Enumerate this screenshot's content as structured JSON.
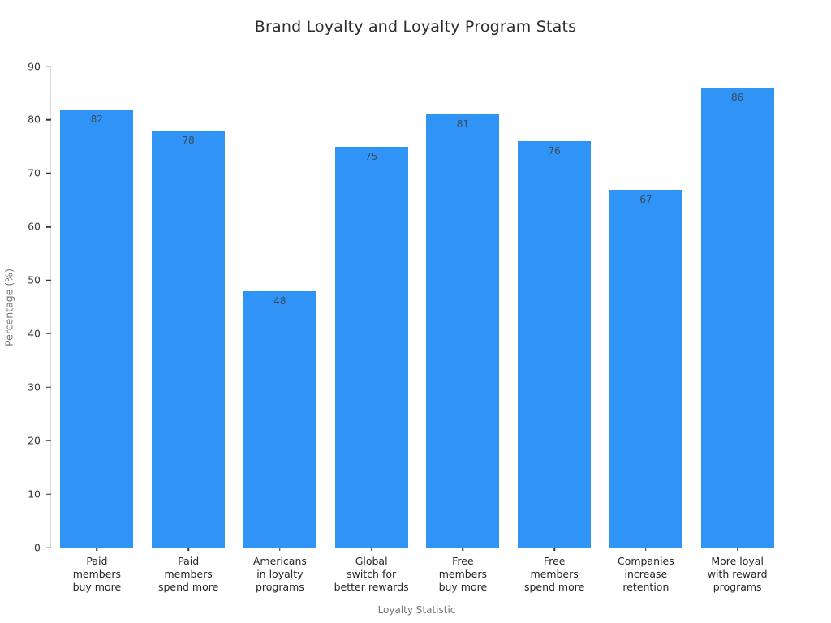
{
  "chart_data": {
    "type": "bar",
    "title": "Brand Loyalty and Loyalty Program Stats",
    "xlabel": "Loyalty Statistic",
    "ylabel": "Percentage (%)",
    "categories": [
      "Paid\nmembers\nbuy more",
      "Paid\nmembers\nspend more",
      "Americans\nin loyalty\nprograms",
      "Global\nswitch for\nbetter rewards",
      "Free\nmembers\nbuy more",
      "Free\nmembers\nspend more",
      "Companies\nincrease\nretention",
      "More loyal\nwith reward\nprograms"
    ],
    "values": [
      82,
      78,
      48,
      75,
      81,
      76,
      67,
      86
    ],
    "ylim": [
      0,
      90
    ],
    "yticks": [
      0,
      10,
      20,
      30,
      40,
      50,
      60,
      70,
      80,
      90
    ],
    "grid": false,
    "legend_position": "none",
    "bar_color": "#2F94F5",
    "value_label_color": "#3D4A5C",
    "spine_color": "#d9d9d9",
    "tick_color": "#333333"
  }
}
